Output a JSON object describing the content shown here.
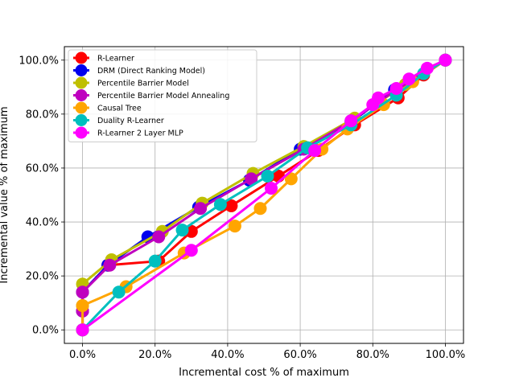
{
  "chart_data": {
    "type": "line",
    "xlabel": "Incremental cost % of maximum",
    "ylabel": "Incremental value % of maximum",
    "xlim": [
      -5,
      105
    ],
    "ylim": [
      -5,
      105
    ],
    "x_ticks": [
      0,
      20,
      40,
      60,
      80,
      100
    ],
    "y_ticks": [
      0,
      20,
      40,
      60,
      80,
      100
    ],
    "x_tick_labels": [
      "0.0%",
      "20.0%",
      "40.0%",
      "60.0%",
      "80.0%",
      "100.0%"
    ],
    "y_tick_labels": [
      "0.0%",
      "20.0%",
      "40.0%",
      "60.0%",
      "80.0%",
      "100.0%"
    ],
    "grid": true,
    "legend_position": "top-left",
    "series": [
      {
        "name": "R-Learner",
        "color": "#ff0000",
        "x": [
          0,
          0,
          0,
          7,
          21,
          30,
          41,
          54,
          65,
          75,
          87,
          94,
          100
        ],
        "y": [
          0,
          7,
          14,
          24,
          25.5,
          36.5,
          46,
          57,
          66.5,
          76,
          86,
          94.5,
          100
        ]
      },
      {
        "name": "DRM (Direct Ranking Model)",
        "color": "#0000ee",
        "x": [
          0,
          0,
          0,
          7,
          18,
          32,
          46,
          60,
          74,
          86,
          100
        ],
        "y": [
          0,
          7,
          14,
          24,
          34.5,
          45.5,
          55.5,
          67,
          77,
          89,
          100
        ]
      },
      {
        "name": "Percentile Barrier Model",
        "color": "#bfbf00",
        "x": [
          0,
          0,
          0,
          8,
          22,
          33,
          47,
          61,
          75,
          89,
          100
        ],
        "y": [
          0,
          9,
          17,
          26,
          36.5,
          47,
          58,
          68,
          78.5,
          91,
          100
        ]
      },
      {
        "name": "Percentile Barrier Model Annealing",
        "color": "#bf00bf",
        "x": [
          0,
          0,
          0,
          7.5,
          21,
          32.5,
          46.5,
          61,
          74,
          86.5,
          100
        ],
        "y": [
          0,
          7,
          14,
          24,
          34.5,
          45,
          56,
          67,
          77.5,
          89,
          100
        ]
      },
      {
        "name": "Causal Tree",
        "color": "#ffa500",
        "x": [
          0,
          0,
          12,
          28,
          42,
          49,
          57.5,
          66,
          73,
          83,
          91,
          100
        ],
        "y": [
          0,
          9,
          16,
          28.5,
          38.5,
          45,
          56,
          67,
          74.5,
          83.5,
          92,
          100
        ]
      },
      {
        "name": "Duality R-Learner",
        "color": "#00bfbf",
        "x": [
          0,
          10,
          20,
          27.5,
          38,
          51,
          62,
          74,
          86.5,
          94,
          100
        ],
        "y": [
          0,
          14,
          25.5,
          37,
          46.5,
          57,
          67.5,
          76,
          87,
          95,
          100
        ]
      },
      {
        "name": "R-Learner 2 Layer MLP",
        "color": "#ff00ff",
        "x": [
          0,
          30,
          52,
          64,
          74,
          80,
          81.5,
          86.5,
          90,
          95,
          100
        ],
        "y": [
          0,
          29.5,
          52.5,
          66.5,
          77.5,
          83.5,
          86,
          89.5,
          93,
          97,
          100
        ]
      }
    ]
  }
}
